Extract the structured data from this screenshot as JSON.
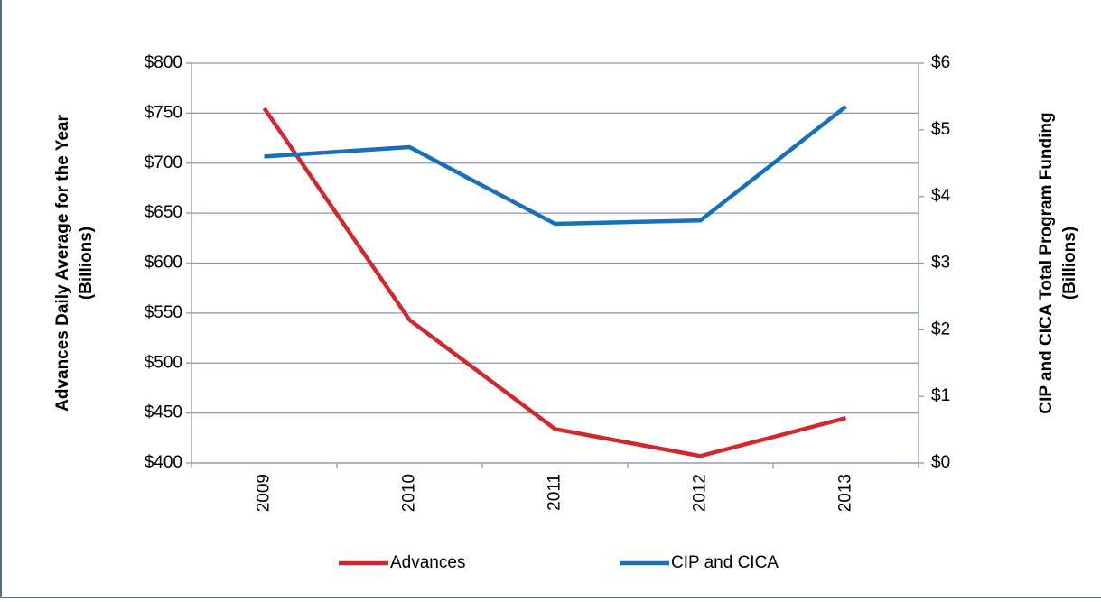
{
  "chart_data": {
    "type": "line",
    "y_label": [
      "Advances  Daily  Average for the Year",
      "(Billions)"
    ],
    "y2_label": [
      "CIP and CICA Total Program Funding",
      "(Billions)"
    ],
    "categories": [
      "2009",
      "2010",
      "2011",
      "2012",
      "2013"
    ],
    "series": [
      {
        "name": "Advances",
        "color": "#d0282f",
        "values": [
          755,
          543,
          434,
          407,
          445
        ]
      },
      {
        "name": "CIP and CICA",
        "color": "#1a6fba",
        "axis": "y2",
        "values": [
          4.6,
          4.74,
          3.59,
          3.64,
          5.35
        ]
      }
    ],
    "ylim": [
      400,
      800
    ],
    "yticks": [
      {
        "value": 400,
        "label": "$400"
      },
      {
        "value": 450,
        "label": "$450"
      },
      {
        "value": 500,
        "label": "$500"
      },
      {
        "value": 550,
        "label": "$550"
      },
      {
        "value": 600,
        "label": "$600"
      },
      {
        "value": 650,
        "label": "$650"
      },
      {
        "value": 700,
        "label": "$700"
      },
      {
        "value": 750,
        "label": "$750"
      },
      {
        "value": 800,
        "label": "$800"
      }
    ],
    "y2lim": [
      0,
      6
    ],
    "y2ticks": [
      {
        "value": 0,
        "label": "$0"
      },
      {
        "value": 1,
        "label": "$1"
      },
      {
        "value": 2,
        "label": "$2"
      },
      {
        "value": 3,
        "label": "$3"
      },
      {
        "value": 4,
        "label": "$4"
      },
      {
        "value": 5,
        "label": "$5"
      },
      {
        "value": 6,
        "label": "$6"
      }
    ],
    "grid": true,
    "legend": "bottom"
  }
}
